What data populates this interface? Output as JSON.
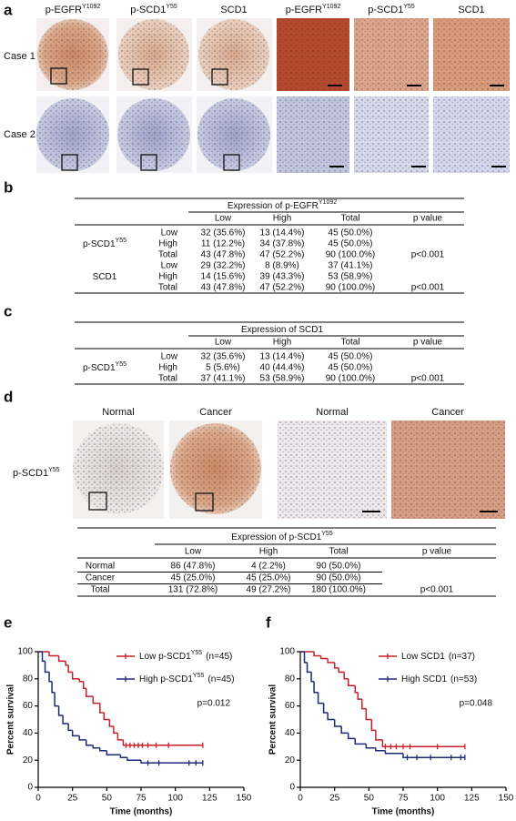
{
  "panel_a": {
    "label": "a",
    "columns": [
      {
        "text": "p-EGFR",
        "sup": "Y1092"
      },
      {
        "text": "p-SCD1",
        "sup": "Y55"
      },
      {
        "text": "SCD1"
      },
      {
        "text": "p-EGFR",
        "sup": "Y1092"
      },
      {
        "text": "p-SCD1",
        "sup": "Y55"
      },
      {
        "text": "SCD1"
      }
    ],
    "rows": [
      "Case 1",
      "Case 2"
    ]
  },
  "panel_b": {
    "label": "b",
    "header": {
      "text": "Expression of p-EGFR",
      "sup": "Y1092"
    },
    "columns": [
      "Low",
      "High",
      "Total",
      "p value"
    ],
    "groups": [
      {
        "name": {
          "text": "p-SCD1",
          "sup": "Y55"
        },
        "p": "p<0.001",
        "rows": [
          {
            "level": "Low",
            "cells": [
              "32 (35.6%)",
              "13 (14.4%)",
              "45 (50.0%)"
            ]
          },
          {
            "level": "High",
            "cells": [
              "11 (12.2%)",
              "34 (37.8%)",
              "45 (50.0%)"
            ]
          },
          {
            "level": "Total",
            "cells": [
              "43 (47.8%)",
              "47 (52.2%)",
              "90 (100.0%)"
            ]
          }
        ]
      },
      {
        "name": {
          "text": "SCD1"
        },
        "p": "p<0.001",
        "rows": [
          {
            "level": "Low",
            "cells": [
              "29 (32.2%)",
              "8 (8.9%)",
              "37 (41.1%)"
            ]
          },
          {
            "level": "High",
            "cells": [
              "14 (15.6%)",
              "39 (43.3%)",
              "53 (58.9%)"
            ]
          },
          {
            "level": "Total",
            "cells": [
              "43 (47.8%)",
              "47 (52.2%)",
              "90 (100.0%)"
            ]
          }
        ]
      }
    ]
  },
  "panel_c": {
    "label": "c",
    "header": {
      "text": "Expression of SCD1"
    },
    "columns": [
      "Low",
      "High",
      "Total",
      "p value"
    ],
    "groups": [
      {
        "name": {
          "text": "p-SCD1",
          "sup": "Y55"
        },
        "p": "p<0.001",
        "rows": [
          {
            "level": "Low",
            "cells": [
              "32 (35.6%)",
              "13 (14.4%)",
              "45 (50.0%)"
            ]
          },
          {
            "level": "High",
            "cells": [
              "5 (5.6%)",
              "40 (44.4%)",
              "45 (50.0%)"
            ]
          },
          {
            "level": "Total",
            "cells": [
              "37 (41.1%)",
              "53 (58.9%)",
              "90 (100.0%)"
            ]
          }
        ]
      }
    ]
  },
  "panel_d": {
    "label": "d",
    "image_labels": [
      "Normal",
      "Cancer",
      "Normal",
      "Cancer"
    ],
    "row_label": {
      "text": "p-SCD1",
      "sup": "Y55"
    },
    "table": {
      "header": {
        "text": "Expression of p-SCD1",
        "sup": "Y55"
      },
      "columns": [
        "Low",
        "High",
        "Total",
        "p value"
      ],
      "rows": [
        {
          "level": "Normal",
          "cells": [
            "86 (47.8%)",
            "4 (2.2%)",
            "90 (50.0%)"
          ]
        },
        {
          "level": "Cancer",
          "cells": [
            "45 (25.0%)",
            "45 (25.0%)",
            "90 (50.0%)"
          ]
        },
        {
          "level": "Total",
          "cells": [
            "131 (72.8%)",
            "49 (27.2%)",
            "180 (100.0%)"
          ],
          "p": "p<0.001"
        }
      ]
    }
  },
  "charts": [
    {
      "type": "step",
      "label": "e",
      "xlabel": "Time (months)",
      "ylabel": "Percent survival",
      "annotation": "p=0.012",
      "xlim": [
        0,
        150
      ],
      "xticks": [
        0,
        25,
        50,
        75,
        100,
        125,
        150
      ],
      "ylim": [
        0,
        100
      ],
      "yticks": [
        0,
        20,
        40,
        60,
        80,
        100
      ],
      "series": [
        {
          "name": {
            "text": "Low p-SCD1",
            "sup": "Y55",
            "suffix": "(n=45)"
          },
          "color": "#c8202a",
          "x": [
            0,
            8,
            15,
            20,
            22,
            25,
            30,
            33,
            35,
            40,
            45,
            48,
            52,
            55,
            58,
            62,
            120
          ],
          "values": [
            100,
            97,
            93,
            90,
            85,
            80,
            78,
            73,
            67,
            62,
            55,
            50,
            45,
            40,
            35,
            31,
            31
          ],
          "censored": [
            64,
            67,
            70,
            73,
            76,
            80,
            86,
            95,
            120
          ]
        },
        {
          "name": {
            "text": "High p-SCD1",
            "sup": "Y55",
            "suffix": "(n=45)"
          },
          "color": "#1c2a78",
          "x": [
            0,
            3,
            5,
            8,
            10,
            12,
            15,
            18,
            22,
            25,
            30,
            35,
            40,
            45,
            50,
            60,
            65,
            75,
            120
          ],
          "values": [
            100,
            93,
            85,
            78,
            70,
            60,
            53,
            47,
            42,
            38,
            35,
            31,
            29,
            27,
            24,
            22,
            20,
            18,
            18
          ],
          "censored": [
            80,
            88,
            110,
            115,
            120
          ]
        }
      ]
    },
    {
      "type": "step",
      "label": "f",
      "xlabel": "Time (months)",
      "ylabel": "Percent survival",
      "annotation": "p=0.048",
      "xlim": [
        0,
        150
      ],
      "xticks": [
        0,
        25,
        50,
        75,
        100,
        125,
        150
      ],
      "ylim": [
        0,
        100
      ],
      "yticks": [
        0,
        20,
        40,
        60,
        80,
        100
      ],
      "series": [
        {
          "name": {
            "text": "Low SCD1",
            "suffix": "(n=37)"
          },
          "color": "#c8202a",
          "x": [
            0,
            10,
            15,
            20,
            25,
            28,
            32,
            35,
            40,
            42,
            45,
            48,
            52,
            55,
            60,
            120
          ],
          "values": [
            100,
            97,
            95,
            92,
            88,
            85,
            80,
            75,
            70,
            65,
            58,
            50,
            42,
            35,
            30,
            30
          ],
          "censored": [
            62,
            66,
            70,
            75,
            80,
            100,
            120
          ]
        },
        {
          "name": {
            "text": "High SCD1",
            "suffix": "(n=53)"
          },
          "color": "#1c2a78",
          "x": [
            0,
            3,
            5,
            8,
            10,
            13,
            17,
            20,
            25,
            30,
            35,
            40,
            48,
            55,
            62,
            75,
            120
          ],
          "values": [
            100,
            92,
            85,
            78,
            70,
            62,
            55,
            50,
            45,
            40,
            36,
            32,
            29,
            27,
            25,
            22,
            22
          ],
          "censored": [
            78,
            85,
            95,
            110,
            117,
            120
          ]
        }
      ]
    }
  ]
}
